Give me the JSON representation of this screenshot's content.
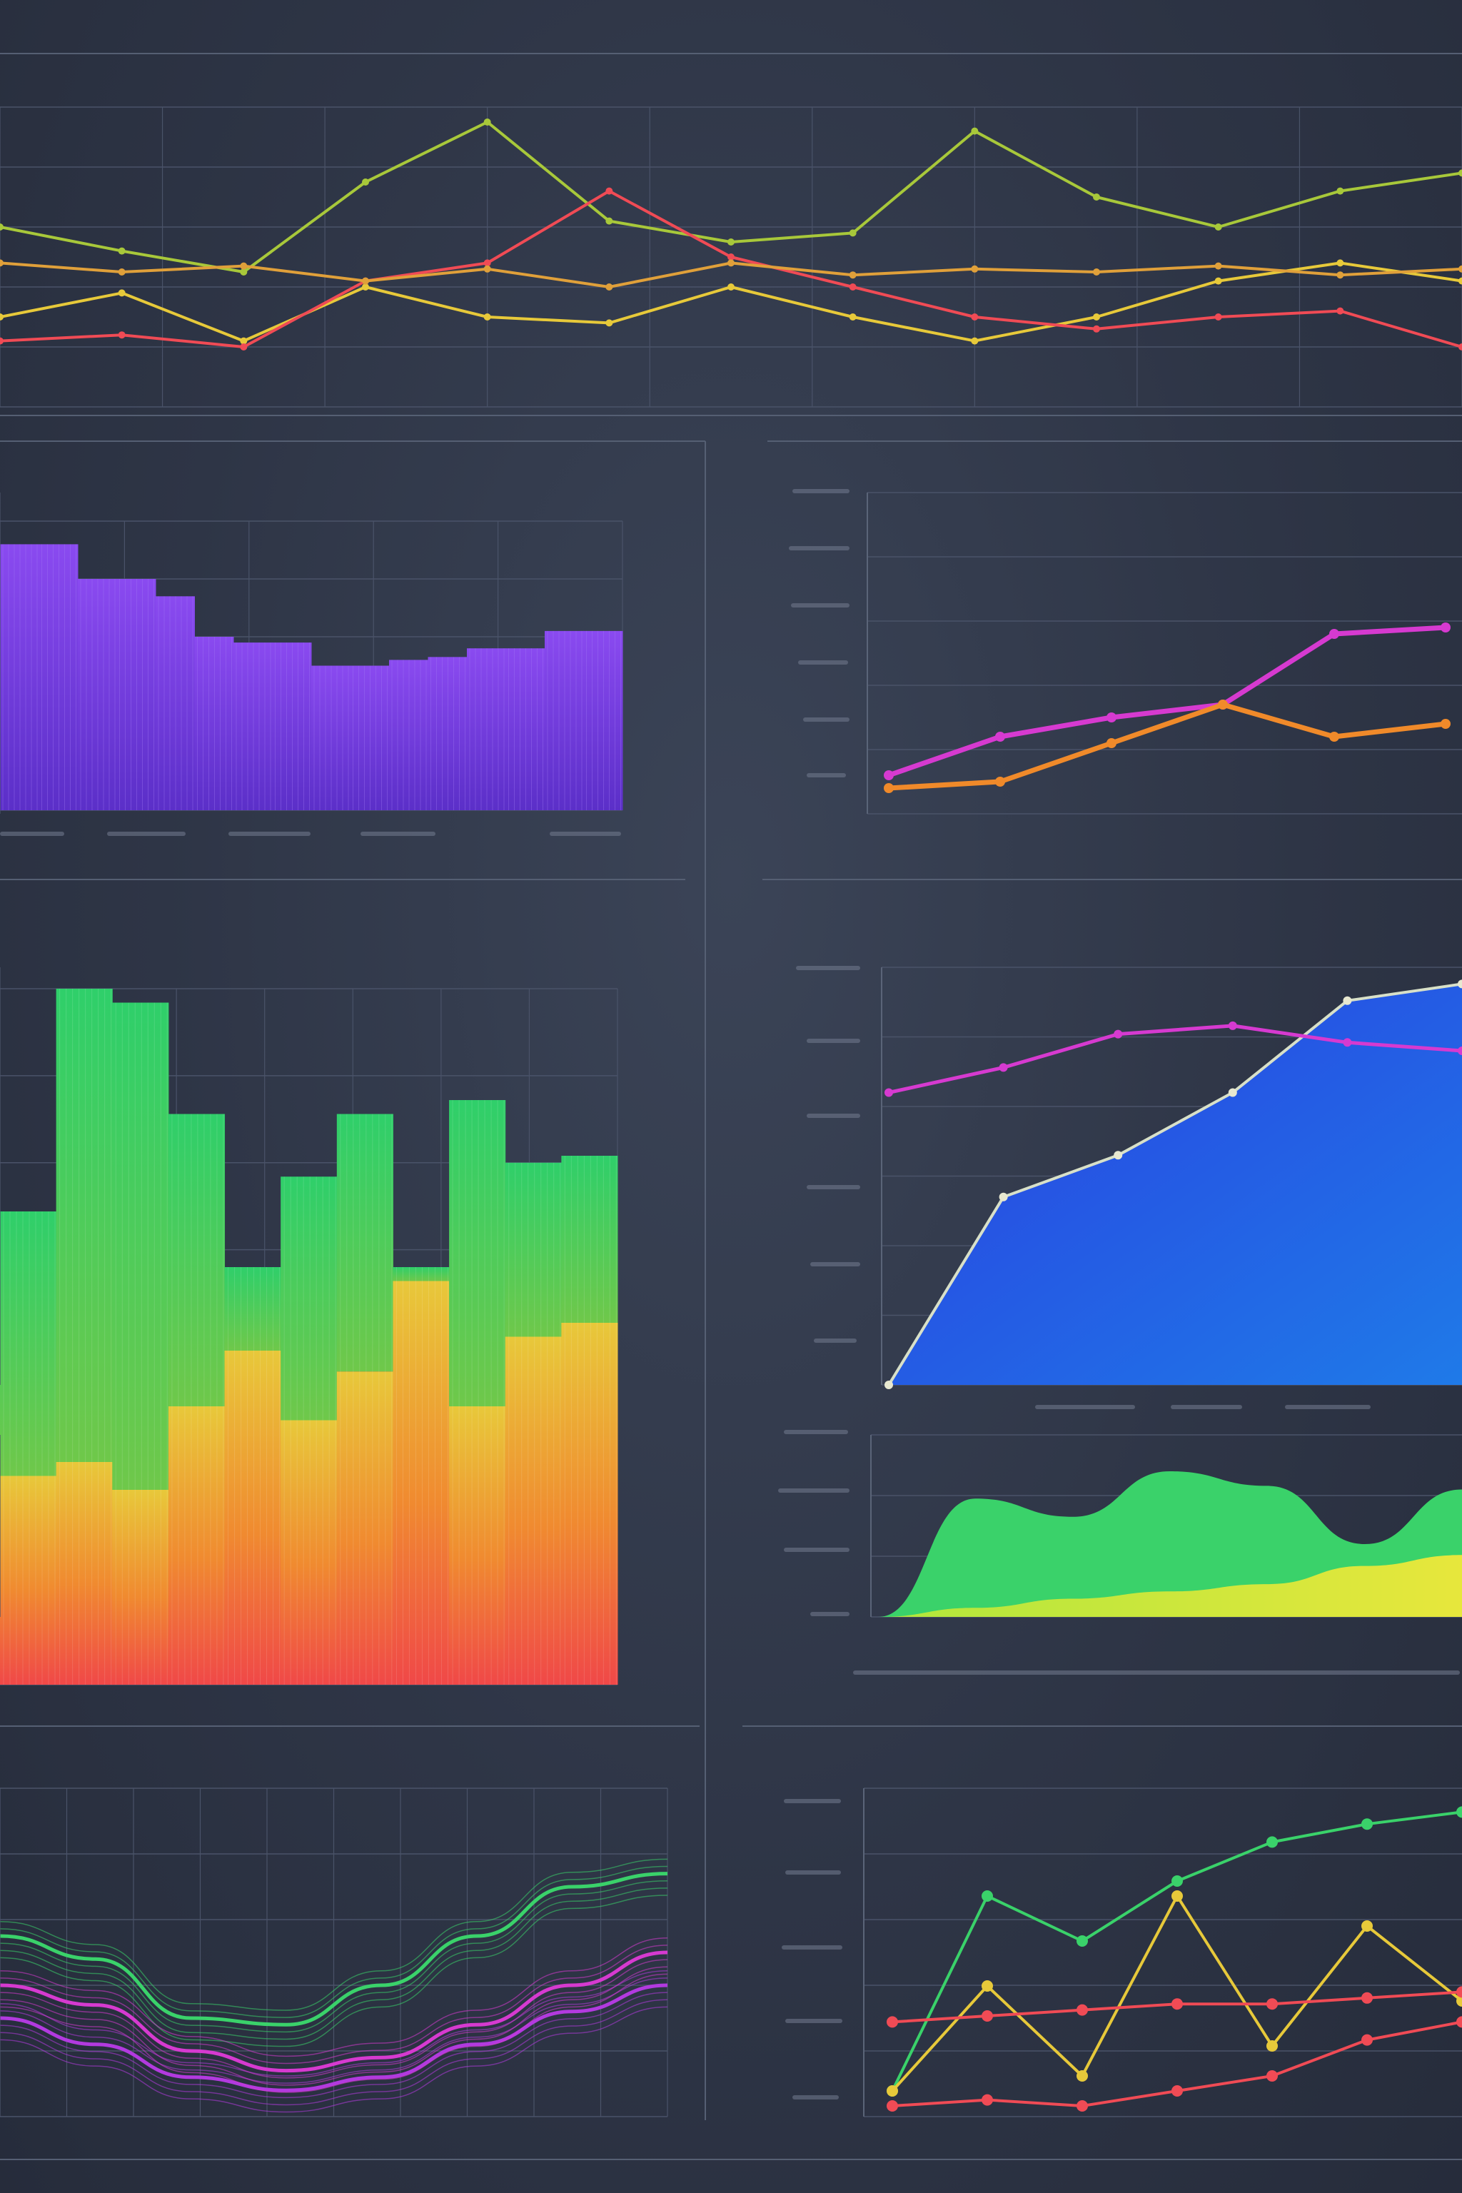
{
  "colors": {
    "background": "#2f3647",
    "panel_line": "#5a6478",
    "grid": "#49526a",
    "yellow": "#e7c93a",
    "green": "#3ad26a",
    "red": "#f04b55",
    "magenta": "#d63ad0",
    "orange": "#f08a2a",
    "purple": "#7b3ee0",
    "blue": "#2a4ae8"
  },
  "chart_data": [
    {
      "id": "top-multiline",
      "type": "line",
      "x": [
        0,
        1,
        2,
        3,
        4,
        5,
        6,
        7,
        8,
        9,
        10,
        11,
        12
      ],
      "ylim": [
        0,
        100
      ],
      "grid": true,
      "series": [
        {
          "color": "#a8c83a",
          "values": [
            60,
            52,
            45,
            75,
            95,
            62,
            55,
            58,
            92,
            70,
            60,
            72,
            78
          ]
        },
        {
          "color": "#e7c93a",
          "values": [
            30,
            38,
            22,
            40,
            30,
            28,
            40,
            30,
            22,
            30,
            42,
            48,
            42
          ]
        },
        {
          "color": "#f04b55",
          "values": [
            22,
            24,
            20,
            42,
            48,
            72,
            50,
            40,
            30,
            26,
            30,
            32,
            20
          ]
        },
        {
          "color": "#e0a03a",
          "values": [
            48,
            45,
            47,
            42,
            46,
            40,
            48,
            44,
            46,
            45,
            47,
            44,
            46
          ]
        }
      ]
    },
    {
      "id": "purple-bars",
      "type": "bar",
      "ylim": [
        0,
        100
      ],
      "grid": true,
      "values": [
        92,
        92,
        80,
        80,
        74,
        60,
        58,
        58,
        50,
        50,
        52,
        53,
        56,
        56,
        62,
        62
      ],
      "color": "#7b3ee0"
    },
    {
      "id": "right-two-lines",
      "type": "line",
      "x": [
        0,
        1,
        2,
        3,
        4,
        5
      ],
      "ylim": [
        0,
        100
      ],
      "grid": true,
      "series": [
        {
          "color": "#d63ad0",
          "values": [
            12,
            24,
            30,
            34,
            56,
            58
          ]
        },
        {
          "color": "#f08a2a",
          "values": [
            8,
            10,
            22,
            34,
            24,
            28
          ]
        }
      ]
    },
    {
      "id": "stacked-bars",
      "type": "bar",
      "ylim": [
        0,
        100
      ],
      "grid": true,
      "categories_count": 11,
      "series": [
        {
          "name": "",
          "color": "#f04b55",
          "values": [
            30,
            32,
            28,
            40,
            48,
            38,
            45,
            58,
            40,
            50,
            52
          ]
        },
        {
          "name": "",
          "color": "#3ad26a",
          "values": [
            68,
            100,
            98,
            82,
            60,
            73,
            82,
            60,
            84,
            75,
            76
          ]
        }
      ]
    },
    {
      "id": "blue-area",
      "type": "area",
      "x": [
        0,
        1,
        2,
        3,
        4,
        5
      ],
      "ylim": [
        0,
        100
      ],
      "grid": true,
      "series": [
        {
          "color": "#2a4ae8",
          "values": [
            0,
            45,
            55,
            70,
            92,
            96
          ]
        },
        {
          "color": "#d63ad0",
          "values": [
            70,
            76,
            84,
            86,
            82,
            80
          ]
        }
      ]
    },
    {
      "id": "green-area",
      "type": "area",
      "x": [
        0,
        1,
        2,
        3,
        4,
        5,
        6
      ],
      "ylim": [
        0,
        100
      ],
      "grid": true,
      "series": [
        {
          "color": "#3ad26a",
          "values": [
            0,
            65,
            55,
            80,
            72,
            40,
            70
          ]
        },
        {
          "color": "#d8e83a",
          "values": [
            0,
            5,
            10,
            14,
            18,
            28,
            34
          ]
        }
      ]
    },
    {
      "id": "wave-lines",
      "type": "line",
      "ylim": [
        0,
        100
      ],
      "grid": true,
      "series": [
        {
          "color": "#3ad26a",
          "values": [
            55,
            48,
            30,
            28,
            40,
            55,
            70,
            74
          ]
        },
        {
          "color": "#b23adf",
          "values": [
            30,
            22,
            12,
            8,
            12,
            22,
            32,
            40
          ]
        },
        {
          "color": "#d63ad0",
          "values": [
            40,
            34,
            20,
            14,
            18,
            28,
            40,
            50
          ]
        }
      ]
    },
    {
      "id": "zigzag-lines",
      "type": "line",
      "x": [
        0,
        1,
        2,
        3,
        4,
        5,
        6
      ],
      "ylim": [
        0,
        100
      ],
      "grid": true,
      "series": [
        {
          "color": "#3ad26a",
          "values": [
            5,
            70,
            55,
            75,
            88,
            94,
            98
          ]
        },
        {
          "color": "#e7c93a",
          "values": [
            5,
            40,
            10,
            70,
            20,
            60,
            35
          ]
        },
        {
          "color": "#f04b55",
          "values": [
            28,
            30,
            32,
            34,
            34,
            36,
            38
          ]
        },
        {
          "color": "#f04b55",
          "values": [
            0,
            2,
            0,
            5,
            10,
            22,
            28
          ]
        }
      ]
    }
  ]
}
